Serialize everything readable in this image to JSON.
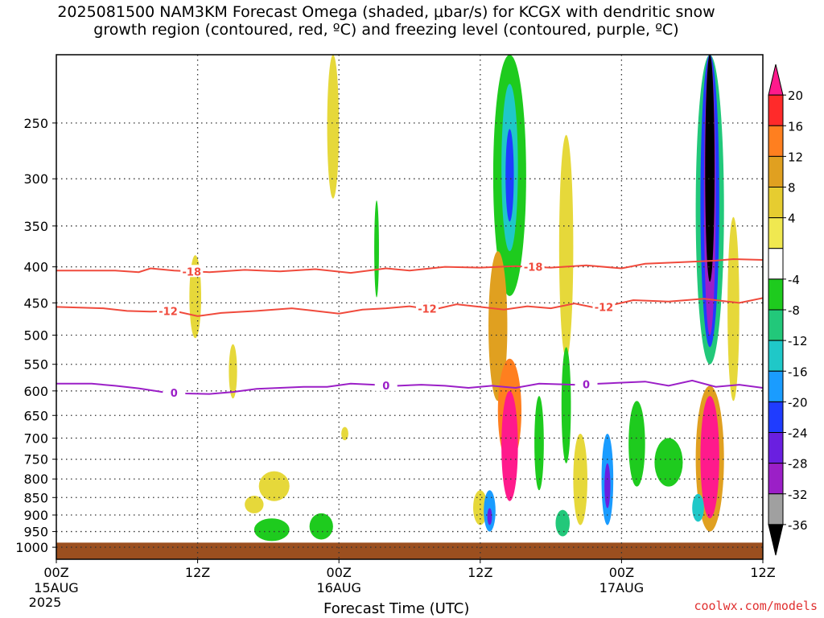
{
  "title": {
    "line1": "2025081500 NAM3KM Forecast Omega (shaded, μbar/s) for KCGX with dendritic snow",
    "line2": "growth region (contoured, red, ºC) and freezing level (contoured, purple, ºC)"
  },
  "credit": "coolwx.com/models",
  "colors": {
    "background": "#ffffff",
    "ground": "#9b4f1f",
    "dgz_contour": "#f04a3c",
    "freezing_contour": "#9b1fc7",
    "grid": "#444444"
  },
  "chart_data": {
    "type": "heatmap",
    "title": "2025081500 NAM3KM Forecast Omega (shaded, μbar/s) for KCGX with dendritic snow growth region (contoured, red, ºC) and freezing level (contoured, purple, ºC)",
    "xlabel": "Forecast Time (UTC)",
    "ylabel": "",
    "x_range_hours": [
      0,
      60
    ],
    "y_axis": {
      "scale": "log",
      "reverse": true,
      "range": [
        200,
        1040
      ],
      "ticks": [
        250,
        300,
        350,
        400,
        450,
        500,
        550,
        600,
        650,
        700,
        750,
        800,
        850,
        900,
        950,
        1000
      ]
    },
    "x_ticks": [
      {
        "hour": 0,
        "label": "00Z",
        "sub1": "15AUG",
        "sub2": "2025"
      },
      {
        "hour": 12,
        "label": "12Z",
        "sub1": "",
        "sub2": ""
      },
      {
        "hour": 24,
        "label": "00Z",
        "sub1": "16AUG",
        "sub2": ""
      },
      {
        "hour": 36,
        "label": "12Z",
        "sub1": "",
        "sub2": ""
      },
      {
        "hour": 48,
        "label": "00Z",
        "sub1": "17AUG",
        "sub2": ""
      },
      {
        "hour": 60,
        "label": "12Z",
        "sub1": "",
        "sub2": ""
      }
    ],
    "grid": true,
    "colorbar": {
      "labels": [
        "20",
        "16",
        "12",
        "8",
        "4",
        "-4",
        "-8",
        "-12",
        "-16",
        "-20",
        "-24",
        "-28",
        "-32",
        "-36"
      ],
      "colors": [
        "#ff1a8c",
        "#ff2a2a",
        "#ff7f1f",
        "#e0a020",
        "#e6cc30",
        "#f0e850",
        "#ffffff",
        "#1ecb1e",
        "#22c87a",
        "#1fc8c8",
        "#1a9cff",
        "#1f3cff",
        "#6a1fe0",
        "#9b1fc7",
        "#a0a0a0",
        "#000000"
      ]
    },
    "contours": [
      {
        "name": "-18",
        "color": "#f04a3c",
        "label_hours": [
          11.5,
          40.5
        ],
        "points": [
          [
            0,
            405
          ],
          [
            5,
            405
          ],
          [
            7,
            407
          ],
          [
            8,
            402
          ],
          [
            10,
            405
          ],
          [
            13,
            407
          ],
          [
            16,
            404
          ],
          [
            19,
            406
          ],
          [
            22,
            403
          ],
          [
            25,
            408
          ],
          [
            28,
            402
          ],
          [
            30,
            405
          ],
          [
            33,
            400
          ],
          [
            36,
            401
          ],
          [
            39,
            399
          ],
          [
            42,
            401
          ],
          [
            45,
            398
          ],
          [
            48,
            402
          ],
          [
            50,
            396
          ],
          [
            53,
            394
          ],
          [
            56,
            392
          ],
          [
            57.5,
            390
          ],
          [
            60,
            391
          ]
        ]
      },
      {
        "name": "-12",
        "color": "#f04a3c",
        "label_hours": [
          9.5,
          31.5,
          46.5
        ],
        "points": [
          [
            0,
            456
          ],
          [
            4,
            458
          ],
          [
            6,
            462
          ],
          [
            8,
            463
          ],
          [
            10,
            462
          ],
          [
            12,
            470
          ],
          [
            14,
            465
          ],
          [
            17,
            462
          ],
          [
            20,
            458
          ],
          [
            22,
            462
          ],
          [
            24,
            466
          ],
          [
            26,
            460
          ],
          [
            28,
            458
          ],
          [
            30,
            455
          ],
          [
            32,
            460
          ],
          [
            34,
            452
          ],
          [
            36,
            456
          ],
          [
            38,
            460
          ],
          [
            40,
            455
          ],
          [
            42,
            458
          ],
          [
            44,
            451
          ],
          [
            46,
            458
          ],
          [
            49,
            446
          ],
          [
            52,
            448
          ],
          [
            55,
            444
          ],
          [
            58,
            450
          ],
          [
            60,
            443
          ]
        ]
      },
      {
        "name": "0",
        "color": "#9b1fc7",
        "label_hours": [
          10,
          28,
          45
        ],
        "points": [
          [
            0,
            586
          ],
          [
            3,
            586
          ],
          [
            5,
            590
          ],
          [
            7,
            595
          ],
          [
            9,
            602
          ],
          [
            11,
            605
          ],
          [
            13,
            606
          ],
          [
            15,
            602
          ],
          [
            17,
            596
          ],
          [
            19,
            594
          ],
          [
            21,
            592
          ],
          [
            23,
            592
          ],
          [
            25,
            586
          ],
          [
            27,
            588
          ],
          [
            29,
            590
          ],
          [
            31,
            588
          ],
          [
            33,
            590
          ],
          [
            35,
            594
          ],
          [
            37,
            590
          ],
          [
            39,
            594
          ],
          [
            41,
            586
          ],
          [
            44,
            588
          ],
          [
            47,
            585
          ],
          [
            50,
            582
          ],
          [
            52,
            590
          ],
          [
            54,
            580
          ],
          [
            56,
            592
          ],
          [
            58,
            588
          ],
          [
            60,
            594
          ]
        ]
      }
    ],
    "omega_cells": [
      {
        "hour": 11.8,
        "p": 445,
        "dh": 0.5,
        "dp": 60,
        "value": 6
      },
      {
        "hour": 15.0,
        "p": 565,
        "dh": 0.35,
        "dp": 50,
        "value": 6
      },
      {
        "hour": 23.5,
        "p": 260,
        "dh": 0.5,
        "dp": 60,
        "value": 6
      },
      {
        "hour": 24.5,
        "p": 690,
        "dh": 0.3,
        "dp": 15,
        "value": 6
      },
      {
        "hour": 18.5,
        "p": 820,
        "dh": 1.3,
        "dp": 40,
        "value": 6
      },
      {
        "hour": 16.8,
        "p": 870,
        "dh": 0.8,
        "dp": 25,
        "value": 6
      },
      {
        "hour": 18.3,
        "p": 945,
        "dh": 1.5,
        "dp": 35,
        "value": -6
      },
      {
        "hour": 22.5,
        "p": 935,
        "dh": 1.0,
        "dp": 40,
        "value": -6
      },
      {
        "hour": 27.2,
        "p": 382,
        "dh": 0.2,
        "dp": 60,
        "value": -6
      },
      {
        "hour": 36.0,
        "p": 880,
        "dh": 0.6,
        "dp": 50,
        "value": 6
      },
      {
        "hour": 38.5,
        "p": 290,
        "dh": 1.4,
        "dp": 150,
        "value": -6
      },
      {
        "hour": 38.5,
        "p": 300,
        "dh": 0.7,
        "dp": 80,
        "value": -14
      },
      {
        "hour": 38.5,
        "p": 300,
        "dh": 0.35,
        "dp": 45,
        "value": -22
      },
      {
        "hour": 37.5,
        "p": 500,
        "dh": 0.8,
        "dp": 120,
        "value": 10
      },
      {
        "hour": 38.5,
        "p": 650,
        "dh": 1.0,
        "dp": 110,
        "value": 12
      },
      {
        "hour": 38.5,
        "p": 730,
        "dh": 0.7,
        "dp": 130,
        "value": 22
      },
      {
        "hour": 36.8,
        "p": 890,
        "dh": 0.5,
        "dp": 60,
        "value": -18
      },
      {
        "hour": 36.8,
        "p": 905,
        "dh": 0.2,
        "dp": 25,
        "value": -26
      },
      {
        "hour": 41.0,
        "p": 720,
        "dh": 0.4,
        "dp": 110,
        "value": -6
      },
      {
        "hour": 43.3,
        "p": 400,
        "dh": 0.6,
        "dp": 140,
        "value": 6
      },
      {
        "hour": 43.3,
        "p": 640,
        "dh": 0.4,
        "dp": 120,
        "value": -6
      },
      {
        "hour": 44.5,
        "p": 810,
        "dh": 0.6,
        "dp": 120,
        "value": 6
      },
      {
        "hour": 43.0,
        "p": 925,
        "dh": 0.6,
        "dp": 40,
        "value": -10
      },
      {
        "hour": 46.8,
        "p": 810,
        "dh": 0.5,
        "dp": 120,
        "value": -16
      },
      {
        "hour": 46.8,
        "p": 820,
        "dh": 0.25,
        "dp": 60,
        "value": -24
      },
      {
        "hour": 49.3,
        "p": 720,
        "dh": 0.7,
        "dp": 100,
        "value": -6
      },
      {
        "hour": 52.0,
        "p": 760,
        "dh": 1.2,
        "dp": 60,
        "value": -6
      },
      {
        "hour": 55.5,
        "p": 330,
        "dh": 1.2,
        "dp": 220,
        "value": -8
      },
      {
        "hour": 55.5,
        "p": 340,
        "dh": 0.8,
        "dp": 180,
        "value": -20
      },
      {
        "hour": 55.5,
        "p": 350,
        "dh": 0.5,
        "dp": 150,
        "value": -30
      },
      {
        "hour": 55.5,
        "p": 300,
        "dh": 0.4,
        "dp": 120,
        "value": -40
      },
      {
        "hour": 55.5,
        "p": 770,
        "dh": 1.2,
        "dp": 180,
        "value": 10
      },
      {
        "hour": 55.5,
        "p": 760,
        "dh": 0.8,
        "dp": 150,
        "value": 22
      },
      {
        "hour": 54.5,
        "p": 880,
        "dh": 0.5,
        "dp": 40,
        "value": -14
      },
      {
        "hour": 57.5,
        "p": 480,
        "dh": 0.5,
        "dp": 140,
        "value": 6
      }
    ],
    "ground": {
      "p_top": 985
    }
  }
}
